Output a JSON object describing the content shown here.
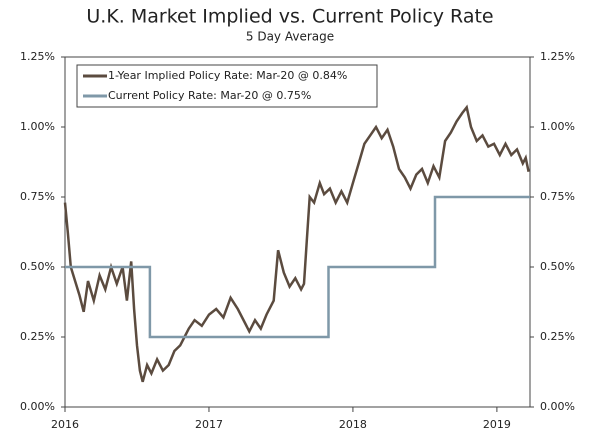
{
  "chart_data": {
    "type": "line",
    "title": "U.K. Market Implied vs. Current Policy Rate",
    "subtitle": "5 Day Average",
    "xlim": [
      2016,
      2019.23
    ],
    "xticks": [
      2016,
      2017,
      2018,
      2019
    ],
    "ylim": [
      0,
      1.25
    ],
    "yticks": [
      {
        "value": 0,
        "label": "0.00%"
      },
      {
        "value": 0.25,
        "label": "0.25%"
      },
      {
        "value": 0.5,
        "label": "0.50%"
      },
      {
        "value": 0.75,
        "label": "0.75%"
      },
      {
        "value": 1,
        "label": "1.00%"
      },
      {
        "value": 1.25,
        "label": "1.25%"
      }
    ],
    "y2lim": [
      0,
      1.25
    ],
    "y2ticks": [
      {
        "value": 0,
        "label": "0.00%"
      },
      {
        "value": 0.25,
        "label": "0.25%"
      },
      {
        "value": 0.5,
        "label": "0.50%"
      },
      {
        "value": 0.75,
        "label": "0.75%"
      },
      {
        "value": 1,
        "label": "1.00%"
      },
      {
        "value": 1.25,
        "label": "1.25%"
      }
    ],
    "legend": "upper left",
    "series": [
      {
        "name": "1-Year Implied Policy Rate: Mar-20 @ 0.84%",
        "color": "#5b4b3f",
        "x": [
          2016.0,
          2016.02,
          2016.04,
          2016.07,
          2016.1,
          2016.13,
          2016.16,
          2016.2,
          2016.24,
          2016.28,
          2016.32,
          2016.36,
          2016.4,
          2016.43,
          2016.46,
          2016.48,
          2016.5,
          2016.52,
          2016.54,
          2016.57,
          2016.6,
          2016.64,
          2016.68,
          2016.72,
          2016.76,
          2016.8,
          2016.83,
          2016.86,
          2016.9,
          2016.95,
          2017.0,
          2017.05,
          2017.1,
          2017.15,
          2017.2,
          2017.25,
          2017.28,
          2017.32,
          2017.36,
          2017.4,
          2017.45,
          2017.48,
          2017.52,
          2017.56,
          2017.6,
          2017.64,
          2017.66,
          2017.68,
          2017.7,
          2017.73,
          2017.77,
          2017.8,
          2017.84,
          2017.88,
          2017.92,
          2017.96,
          2018.0,
          2018.04,
          2018.08,
          2018.12,
          2018.16,
          2018.2,
          2018.24,
          2018.28,
          2018.32,
          2018.36,
          2018.4,
          2018.44,
          2018.48,
          2018.52,
          2018.56,
          2018.6,
          2018.64,
          2018.68,
          2018.72,
          2018.76,
          2018.79,
          2018.82,
          2018.86,
          2018.9,
          2018.94,
          2018.98,
          2019.02,
          2019.06,
          2019.1,
          2019.14,
          2019.18,
          2019.2,
          2019.22
        ],
        "values": [
          0.73,
          0.62,
          0.5,
          0.45,
          0.4,
          0.34,
          0.45,
          0.38,
          0.47,
          0.42,
          0.5,
          0.44,
          0.5,
          0.38,
          0.52,
          0.35,
          0.22,
          0.13,
          0.09,
          0.15,
          0.12,
          0.17,
          0.13,
          0.15,
          0.2,
          0.22,
          0.25,
          0.28,
          0.31,
          0.29,
          0.33,
          0.35,
          0.32,
          0.39,
          0.35,
          0.3,
          0.27,
          0.31,
          0.28,
          0.33,
          0.38,
          0.56,
          0.48,
          0.43,
          0.46,
          0.42,
          0.44,
          0.6,
          0.75,
          0.73,
          0.8,
          0.76,
          0.78,
          0.73,
          0.77,
          0.73,
          0.8,
          0.87,
          0.94,
          0.97,
          1.0,
          0.96,
          0.99,
          0.93,
          0.85,
          0.82,
          0.78,
          0.83,
          0.85,
          0.8,
          0.86,
          0.82,
          0.95,
          0.98,
          1.02,
          1.05,
          1.07,
          1.0,
          0.95,
          0.97,
          0.93,
          0.94,
          0.9,
          0.94,
          0.9,
          0.92,
          0.87,
          0.89,
          0.84
        ]
      },
      {
        "name": "Current Policy Rate: Mar-20 @ 0.75%",
        "color": "#7f98a8",
        "x": [
          2016.0,
          2016.59,
          2016.59,
          2017.83,
          2017.83,
          2018.57,
          2018.57,
          2019.23
        ],
        "values": [
          0.5,
          0.5,
          0.25,
          0.25,
          0.5,
          0.5,
          0.75,
          0.75
        ]
      }
    ]
  }
}
